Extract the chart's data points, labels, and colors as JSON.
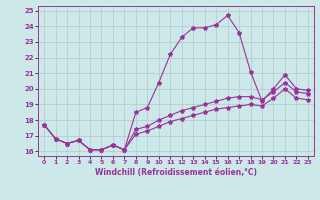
{
  "xlabel": "Windchill (Refroidissement éolien,°C)",
  "bg_color": "#cce8e8",
  "line_color": "#993399",
  "grid_color": "#b0c8c8",
  "xlim": [
    -0.5,
    23.5
  ],
  "ylim": [
    15.7,
    25.3
  ],
  "xticks": [
    0,
    1,
    2,
    3,
    4,
    5,
    6,
    7,
    8,
    9,
    10,
    11,
    12,
    13,
    14,
    15,
    16,
    17,
    18,
    19,
    20,
    21,
    22,
    23
  ],
  "yticks": [
    16,
    17,
    18,
    19,
    20,
    21,
    22,
    23,
    24,
    25
  ],
  "hours": [
    0,
    1,
    2,
    3,
    4,
    5,
    6,
    7,
    8,
    9,
    10,
    11,
    12,
    13,
    14,
    15,
    16,
    17,
    18,
    19,
    20,
    21,
    22,
    23
  ],
  "temp_line1": [
    17.7,
    16.8,
    16.5,
    16.7,
    16.1,
    16.1,
    16.4,
    16.1,
    18.5,
    18.8,
    20.4,
    22.2,
    23.3,
    23.9,
    23.9,
    24.1,
    24.7,
    23.6,
    21.1,
    19.2,
    20.0,
    20.9,
    20.0,
    19.9
  ],
  "temp_line2": [
    17.7,
    16.8,
    16.5,
    16.7,
    16.1,
    16.1,
    16.4,
    16.1,
    17.4,
    17.6,
    18.0,
    18.3,
    18.6,
    18.8,
    19.0,
    19.2,
    19.4,
    19.5,
    19.5,
    19.3,
    19.8,
    20.4,
    19.8,
    19.7
  ],
  "temp_line3": [
    17.7,
    16.8,
    16.5,
    16.7,
    16.1,
    16.1,
    16.4,
    16.1,
    17.1,
    17.3,
    17.6,
    17.9,
    18.1,
    18.3,
    18.5,
    18.7,
    18.8,
    18.9,
    19.0,
    18.9,
    19.4,
    20.0,
    19.4,
    19.3
  ]
}
